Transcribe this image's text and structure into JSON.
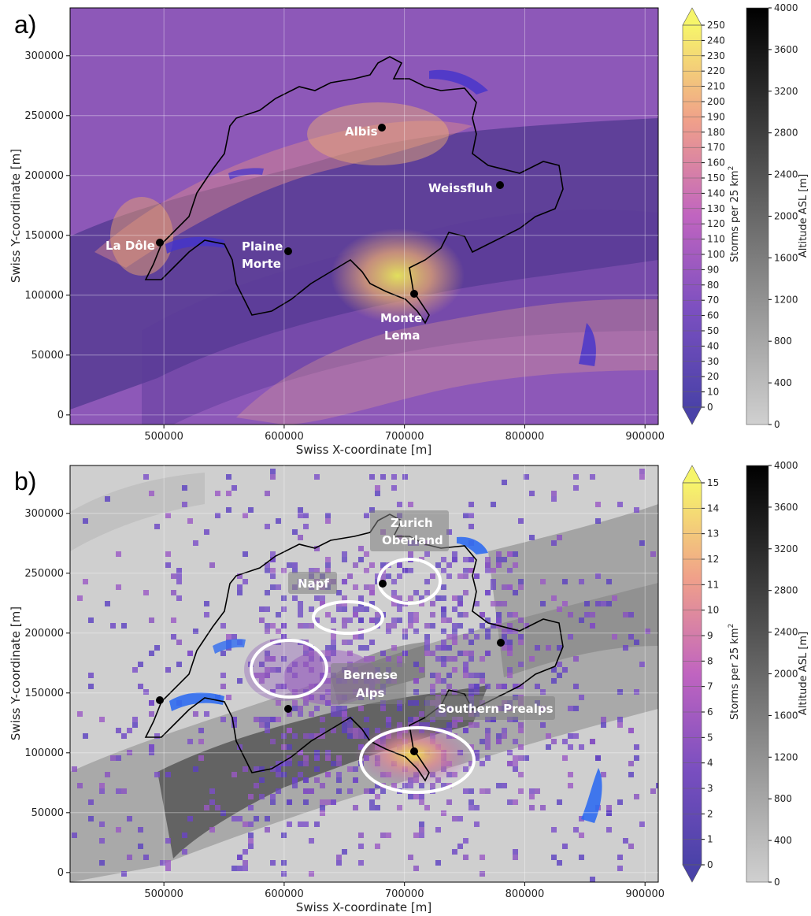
{
  "panels": [
    {
      "label": "a)",
      "xlabel": "Swiss X-coordinate [m]",
      "ylabel": "Swiss Y-coordinate [m]",
      "x_ticks": [
        "500000",
        "600000",
        "700000",
        "800000",
        "900000"
      ],
      "y_ticks": [
        "0",
        "50000",
        "100000",
        "150000",
        "200000",
        "250000",
        "300000"
      ],
      "cbar_label": "Storms per 25 km",
      "cbar_sup": "2",
      "cbar_ticks": [
        "0",
        "10",
        "20",
        "30",
        "40",
        "50",
        "60",
        "70",
        "80",
        "90",
        "100",
        "110",
        "120",
        "130",
        "140",
        "150",
        "160",
        "170",
        "180",
        "190",
        "200",
        "210",
        "220",
        "230",
        "240",
        "250"
      ],
      "alt_label": "Altitude ASL [m]",
      "alt_ticks": [
        "0",
        "400",
        "800",
        "1200",
        "1600",
        "2000",
        "2400",
        "2800",
        "3200",
        "3600",
        "4000"
      ],
      "annotations": [
        {
          "text": "Albis"
        },
        {
          "text": "Weissfluh"
        },
        {
          "text": "La Dôle"
        },
        {
          "text": "Plaine"
        },
        {
          "text": "Morte"
        },
        {
          "text": "Monte"
        },
        {
          "text": "Lema"
        }
      ]
    },
    {
      "label": "b)",
      "xlabel": "Swiss X-coordinate [m]",
      "ylabel": "Swiss Y-coordinate [m]",
      "x_ticks": [
        "500000",
        "600000",
        "700000",
        "800000",
        "900000"
      ],
      "y_ticks": [
        "0",
        "50000",
        "100000",
        "150000",
        "200000",
        "250000",
        "300000"
      ],
      "cbar_label": "Storms per 25 km",
      "cbar_sup": "2",
      "cbar_ticks": [
        "0",
        "1",
        "2",
        "3",
        "4",
        "5",
        "6",
        "7",
        "8",
        "9",
        "10",
        "11",
        "12",
        "13",
        "14",
        "15"
      ],
      "alt_label": "Altitude ASL [m]",
      "alt_ticks": [
        "0",
        "400",
        "800",
        "1200",
        "1600",
        "2000",
        "2400",
        "2800",
        "3200",
        "3600",
        "4000"
      ],
      "annotations": [
        {
          "text": "Zurich"
        },
        {
          "text": "Oberland"
        },
        {
          "text": "Napf"
        },
        {
          "text": "Bernese"
        },
        {
          "text": "Alps"
        },
        {
          "text": "Southern Prealps"
        }
      ]
    }
  ],
  "colors": {
    "storm_low": "#3b2fa0",
    "storm_mid": "#c65cc0",
    "storm_high": "#f6f26a",
    "terrain_light": "#d8d8d8",
    "terrain_dark": "#000000",
    "radar_marker": "#000000",
    "ellipse": "#ffffff"
  }
}
